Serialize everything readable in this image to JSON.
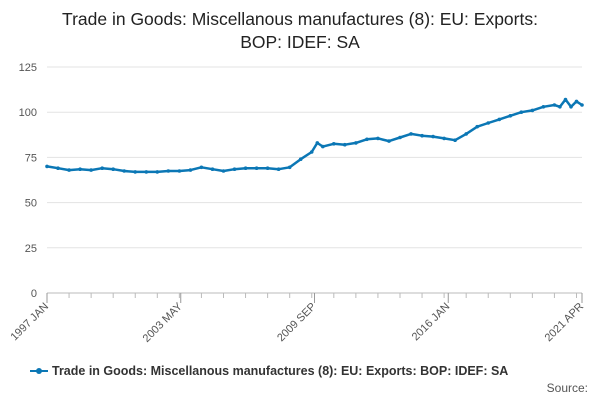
{
  "chart_data": {
    "type": "line",
    "title": "Trade in Goods: Miscellanous manufactures (8): EU: Exports: BOP: IDEF: SA",
    "title_lines": [
      "Trade in Goods: Miscellanous manufactures (8): EU: Exports:",
      "BOP: IDEF: SA"
    ],
    "xlabel": "",
    "ylabel": "",
    "ylim": [
      0,
      125
    ],
    "yticks": [
      0,
      25,
      50,
      75,
      100,
      125
    ],
    "x_tick_labels": [
      "1997 JAN",
      "2003 MAY",
      "2009 SEP",
      "2016 JAN",
      "2021 APR"
    ],
    "x_range": [
      "1997-01",
      "2021-04"
    ],
    "grid": true,
    "legend": "bottom",
    "color": "#0b77b5",
    "series": [
      {
        "name": "Trade in Goods: Miscellanous manufactures (8): EU: Exports: BOP: IDEF: SA",
        "points": [
          [
            "1997-01",
            70
          ],
          [
            "1997-07",
            69
          ],
          [
            "1998-01",
            68
          ],
          [
            "1998-07",
            68.5
          ],
          [
            "1999-01",
            68
          ],
          [
            "1999-07",
            69
          ],
          [
            "2000-01",
            68.5
          ],
          [
            "2000-07",
            67.5
          ],
          [
            "2001-01",
            67
          ],
          [
            "2001-07",
            67
          ],
          [
            "2002-01",
            67
          ],
          [
            "2002-07",
            67.5
          ],
          [
            "2003-01",
            67.5
          ],
          [
            "2003-07",
            68
          ],
          [
            "2004-01",
            69.5
          ],
          [
            "2004-07",
            68.5
          ],
          [
            "2005-01",
            67.5
          ],
          [
            "2005-07",
            68.5
          ],
          [
            "2006-01",
            69
          ],
          [
            "2006-07",
            69
          ],
          [
            "2007-01",
            69
          ],
          [
            "2007-07",
            68.5
          ],
          [
            "2008-01",
            69.5
          ],
          [
            "2008-07",
            74
          ],
          [
            "2009-01",
            78
          ],
          [
            "2009-04",
            83
          ],
          [
            "2009-07",
            81
          ],
          [
            "2010-01",
            82.5
          ],
          [
            "2010-07",
            82
          ],
          [
            "2011-01",
            83
          ],
          [
            "2011-07",
            85
          ],
          [
            "2012-01",
            85.5
          ],
          [
            "2012-07",
            84
          ],
          [
            "2013-01",
            86
          ],
          [
            "2013-07",
            88
          ],
          [
            "2014-01",
            87
          ],
          [
            "2014-07",
            86.5
          ],
          [
            "2015-01",
            85.5
          ],
          [
            "2015-07",
            84.5
          ],
          [
            "2016-01",
            88
          ],
          [
            "2016-07",
            92
          ],
          [
            "2017-01",
            94
          ],
          [
            "2017-07",
            96
          ],
          [
            "2018-01",
            98
          ],
          [
            "2018-07",
            100
          ],
          [
            "2019-01",
            101
          ],
          [
            "2019-07",
            103
          ],
          [
            "2020-01",
            104
          ],
          [
            "2020-04",
            103
          ],
          [
            "2020-07",
            107
          ],
          [
            "2020-10",
            103
          ],
          [
            "2021-01",
            106
          ],
          [
            "2021-04",
            104
          ]
        ]
      }
    ]
  },
  "source_label": "Source:"
}
